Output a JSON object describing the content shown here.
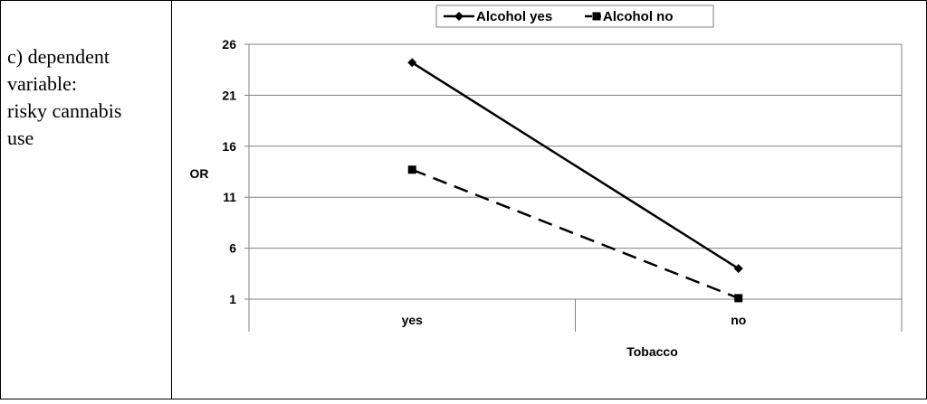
{
  "caption": {
    "lines": [
      "c) dependent",
      "variable:",
      "risky cannabis",
      "use"
    ]
  },
  "chart_data": {
    "type": "line",
    "title": "",
    "xlabel": "Tobacco",
    "ylabel": "OR",
    "categories": [
      "yes",
      "no"
    ],
    "ylim": [
      1,
      26
    ],
    "yticks": [
      1,
      6,
      11,
      16,
      21,
      26
    ],
    "grid": true,
    "legend_position": "top",
    "series": [
      {
        "name": "Alcohol yes",
        "values": [
          24.2,
          4.0
        ],
        "marker": "diamond",
        "dash": "solid",
        "color": "#000000"
      },
      {
        "name": "Alcohol no",
        "values": [
          13.7,
          1.1
        ],
        "marker": "square",
        "dash": "dashed",
        "color": "#000000"
      }
    ]
  }
}
